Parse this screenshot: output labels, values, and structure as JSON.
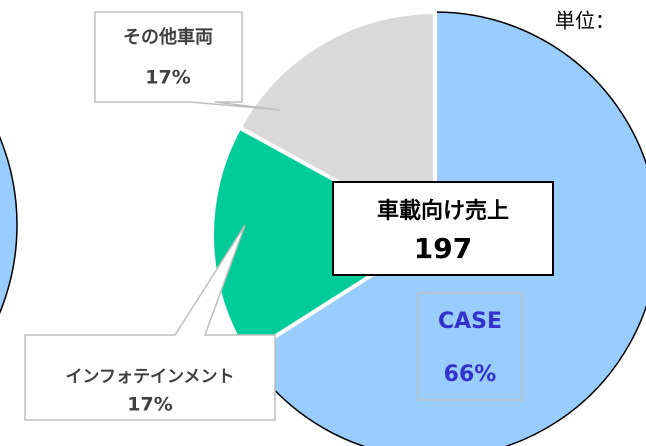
{
  "chart_data": {
    "type": "pie",
    "unit_label": "単位：",
    "categories": [
      "CASE",
      "インフォテインメント",
      "その他車両"
    ],
    "values": [
      66,
      17,
      17
    ],
    "value_labels": [
      "66%",
      "17%",
      "17%"
    ],
    "colors": [
      "#99ccff",
      "#00cc99",
      "#d9d9d9"
    ],
    "center_label": "車載向け売上",
    "center_value": "197"
  }
}
